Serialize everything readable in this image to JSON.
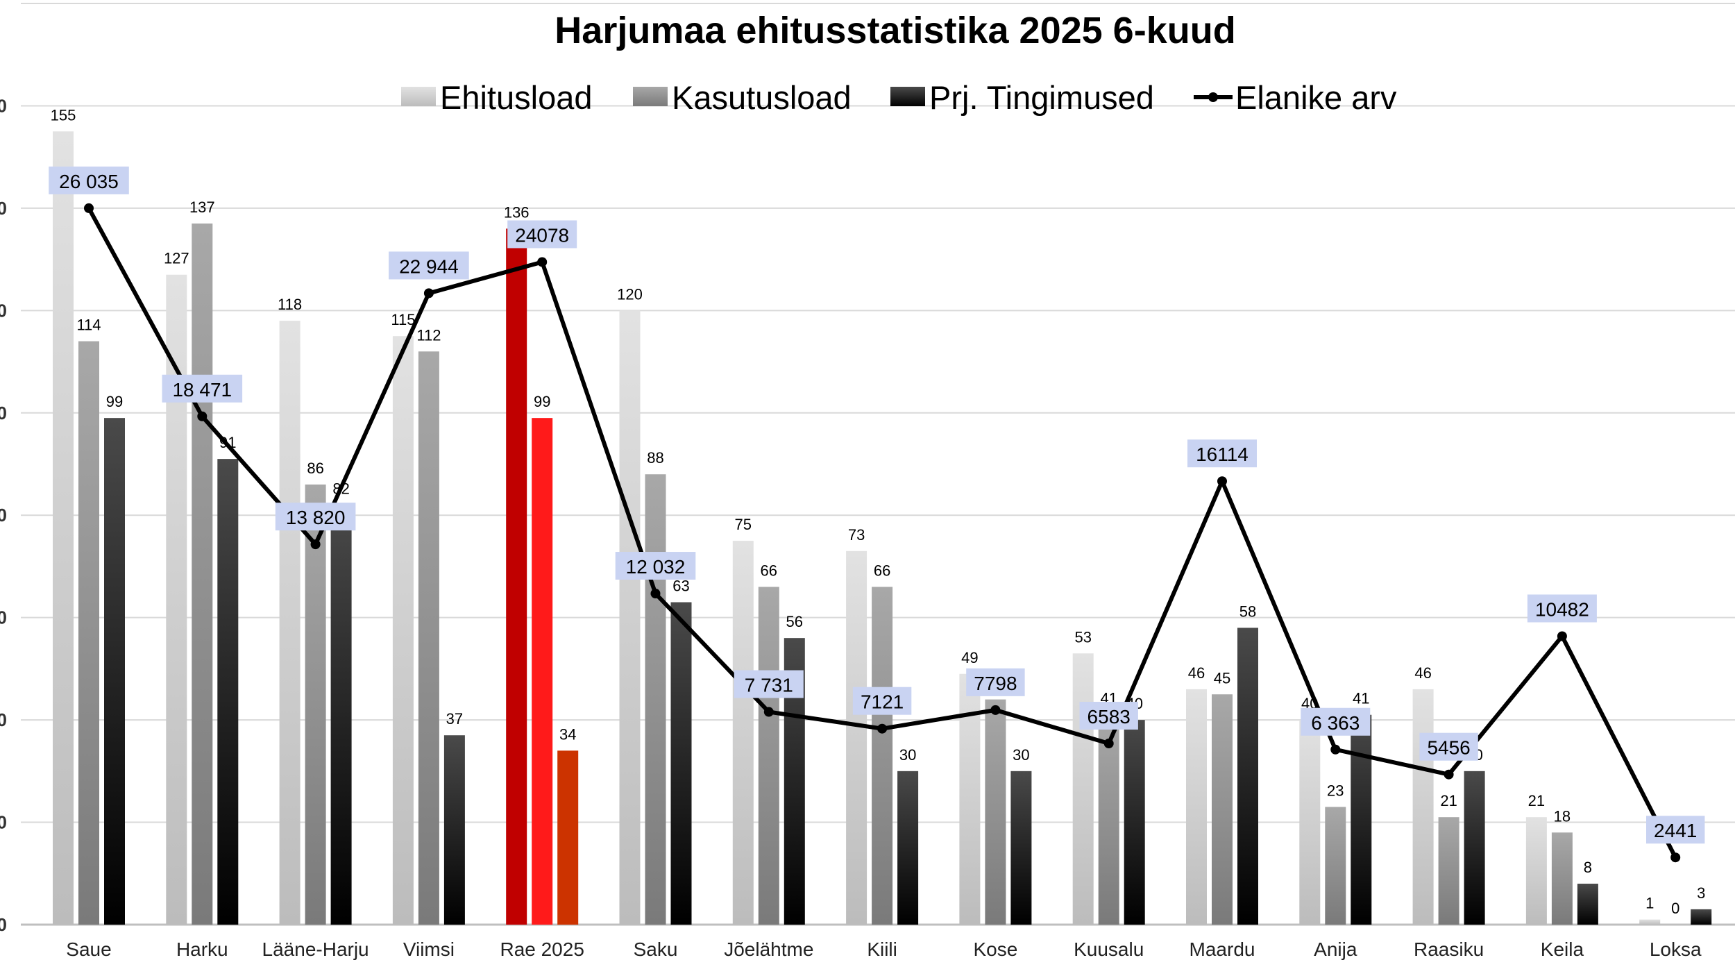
{
  "chart_data": {
    "type": "bar",
    "title": "Harjumaa ehitusstatistika 2025 6-kuud",
    "categories": [
      "Saue",
      "Harku",
      "Lääne-Harju",
      "Viimsi",
      "Rae 2025",
      "Saku",
      "Jõelähtme",
      "Kiili",
      "Kose",
      "Kuusalu",
      "Maardu",
      "Anija",
      "Raasiku",
      "Keila",
      "Loksa"
    ],
    "series": [
      {
        "name": "Ehitusload",
        "type": "bar",
        "color": "#c8c8c8",
        "values": [
          155,
          127,
          118,
          115,
          136,
          120,
          75,
          73,
          49,
          53,
          46,
          40,
          46,
          21,
          1
        ]
      },
      {
        "name": "Kasutusload",
        "type": "bar",
        "color": "#8c8c8c",
        "values": [
          114,
          137,
          86,
          112,
          99,
          88,
          66,
          66,
          44,
          41,
          45,
          23,
          21,
          18,
          0
        ]
      },
      {
        "name": "Prj. Tingimused",
        "type": "bar",
        "color": "#111111",
        "values": [
          99,
          91,
          82,
          37,
          34,
          63,
          56,
          30,
          30,
          40,
          58,
          41,
          30,
          8,
          3
        ]
      },
      {
        "name": "Elanike arv",
        "type": "line",
        "color": "#000000",
        "values": [
          26035,
          18471,
          13820,
          22944,
          24078,
          12032,
          7731,
          7121,
          7798,
          6583,
          16114,
          6363,
          5456,
          10482,
          2441
        ],
        "value_labels": [
          "26 035",
          "18 471",
          "13 820",
          "22 944",
          "24078",
          "12 032",
          "7 731",
          "7121",
          "7798",
          "6583",
          "16114",
          "6 363",
          "5456",
          "10482",
          "2441"
        ]
      }
    ],
    "highlight": {
      "category": "Rae 2025",
      "colors": [
        "#c00000",
        "#ff1a1a",
        "#cc3300"
      ]
    },
    "bar_value_labels": [
      [
        "155",
        "127",
        "118",
        "115",
        "136",
        "120",
        "75",
        "73",
        "49",
        "53",
        "46",
        "40",
        "46",
        "21",
        "1"
      ],
      [
        "114",
        "137",
        "86",
        "112",
        "99",
        "88",
        "66",
        "66",
        "44",
        "41",
        "45",
        "23",
        "21",
        "18",
        "0"
      ],
      [
        "99",
        "91",
        "82",
        "37",
        "34",
        "63",
        "56",
        "30",
        "30",
        "40",
        "58",
        "41",
        "30",
        "8",
        "3"
      ]
    ],
    "y_tick_labels": [
      "0",
      "0",
      "0",
      "0",
      "0",
      "0",
      "0",
      "0",
      "0",
      "0"
    ],
    "ylim": [
      0,
      180
    ],
    "grid": true,
    "legend": "top"
  },
  "colors": {
    "line_label_bg": "#c9d3f2",
    "grid": "#d9d9d9",
    "axis": "#bfbfbf"
  }
}
